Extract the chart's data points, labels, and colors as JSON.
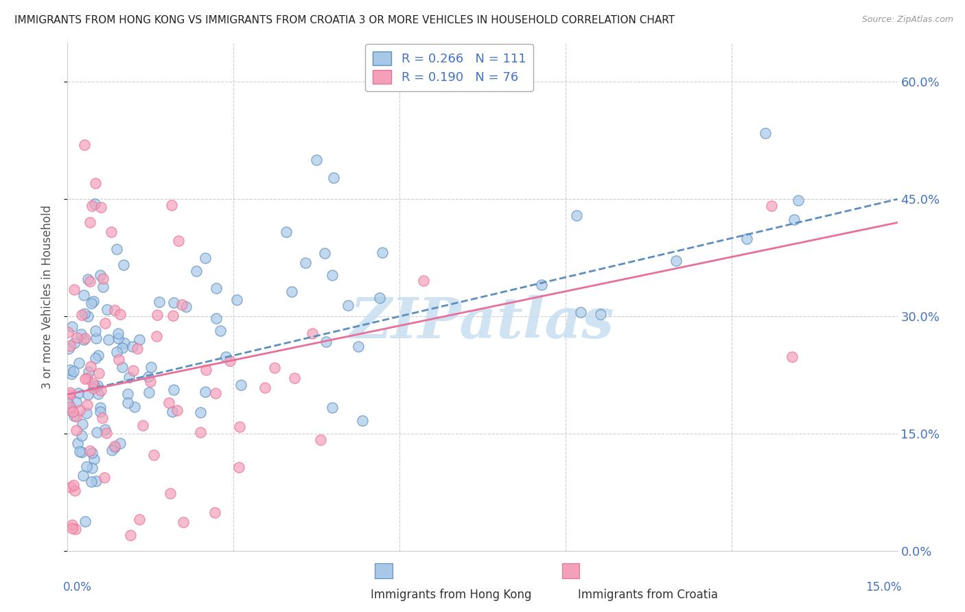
{
  "title": "IMMIGRANTS FROM HONG KONG VS IMMIGRANTS FROM CROATIA 3 OR MORE VEHICLES IN HOUSEHOLD CORRELATION CHART",
  "source": "Source: ZipAtlas.com",
  "ylabel": "3 or more Vehicles in Household",
  "ytick_vals": [
    0,
    15,
    30,
    45,
    60
  ],
  "xlim": [
    0,
    15
  ],
  "ylim": [
    0,
    65
  ],
  "R_hk": 0.266,
  "N_hk": 111,
  "R_cr": 0.19,
  "N_cr": 76,
  "color_hk": "#A8C8E8",
  "color_cr": "#F4A0B8",
  "trendline_hk_color": "#5B8FC0",
  "trendline_cr_color": "#E87098",
  "watermark_color": "#C8DEF0",
  "watermark_text": "ZIPatlas",
  "legend_R_N_color": "#4472C4",
  "ytick_color": "#4472C4",
  "xlabel_color": "#4472C4"
}
